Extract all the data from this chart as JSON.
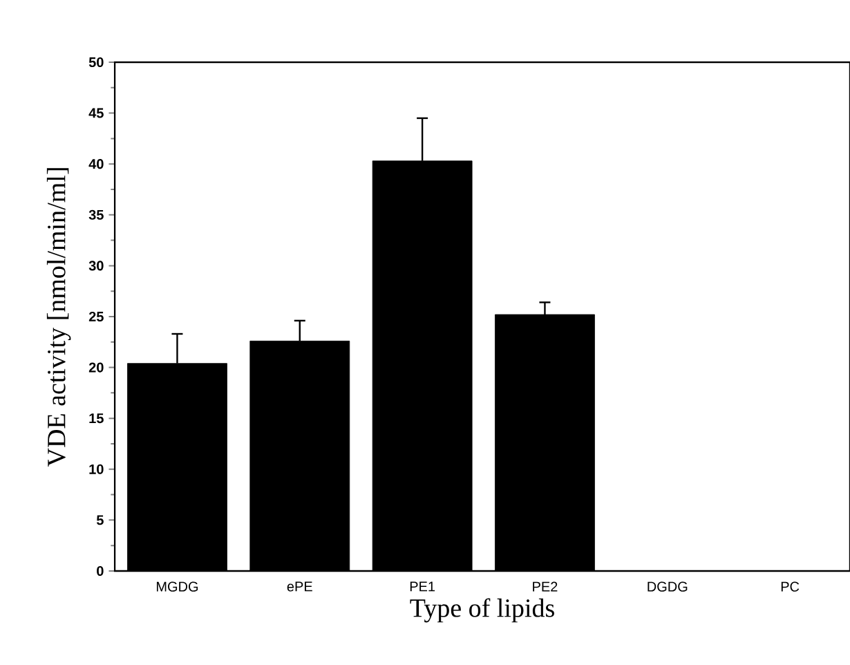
{
  "chart_data": {
    "type": "bar",
    "xlabel": "Type of lipids",
    "ylabel": "VDE activity [nmol/min/ml]",
    "categories": [
      "MGDG",
      "ePE",
      "PE1",
      "PE2",
      "DGDG",
      "PC"
    ],
    "values": [
      20.4,
      22.6,
      40.3,
      25.2,
      0,
      0
    ],
    "errors": [
      2.9,
      2.0,
      4.2,
      1.2,
      null,
      null
    ],
    "color": "#000000",
    "ylim": [
      0,
      50
    ],
    "yticks": [
      0,
      5,
      10,
      15,
      20,
      25,
      30,
      35,
      40,
      45,
      50
    ]
  }
}
